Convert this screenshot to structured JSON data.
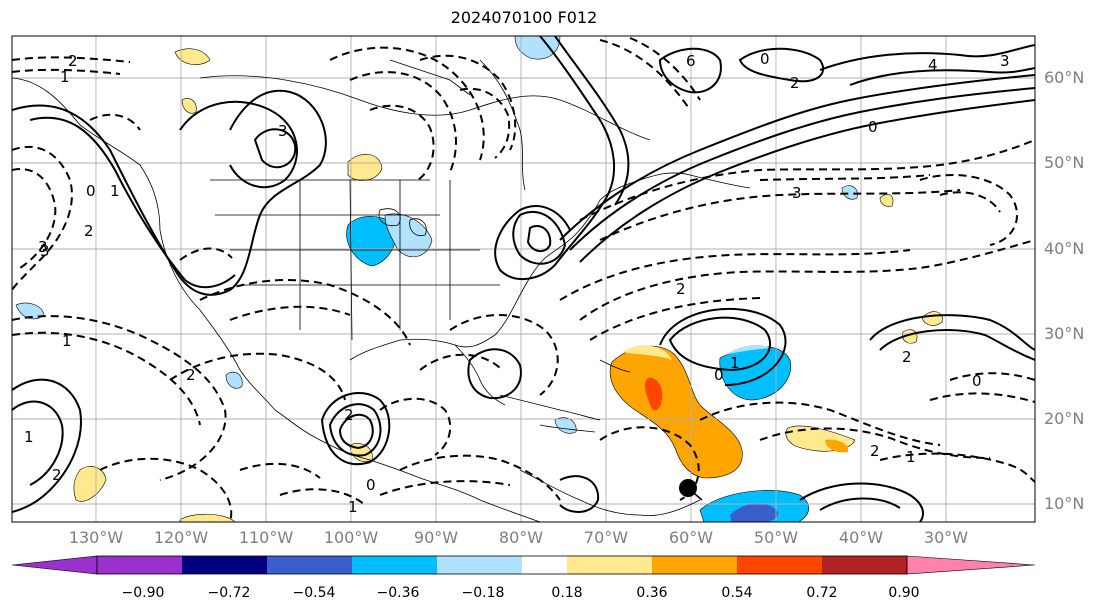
{
  "title": "2024070100 F012",
  "lat_labels": [
    "60°N",
    "50°N",
    "40°N",
    "30°N",
    "20°N",
    "10°N"
  ],
  "lon_labels": [
    "130°W",
    "120°W",
    "110°W",
    "100°W",
    "90°W",
    "80°W",
    "70°W",
    "60°W",
    "50°W",
    "40°W",
    "30°W"
  ],
  "colorbar": {
    "colors": [
      "#9932cc",
      "#000080",
      "#3a5fcd",
      "#00bfff",
      "#b0e2ff",
      "#ffffff",
      "#ffe98f",
      "#ffa500",
      "#ff4500",
      "#b22222",
      "#ff82ab"
    ],
    "tick_labels": [
      "−0.90",
      "−0.72",
      "−0.54",
      "−0.36",
      "−0.18",
      "0.18",
      "0.36",
      "0.54",
      "0.72",
      "0.90"
    ]
  },
  "contour_labels": [
    "2",
    "1",
    "0",
    "3",
    "2",
    "6",
    "0",
    "4",
    "3",
    "2",
    "1",
    "3",
    "3",
    "2",
    "0",
    "1",
    "2",
    "1",
    "0",
    "1",
    "2",
    "2",
    "0",
    "1",
    "2",
    "0",
    "2",
    "3",
    "1"
  ],
  "marker": "storm-position"
}
